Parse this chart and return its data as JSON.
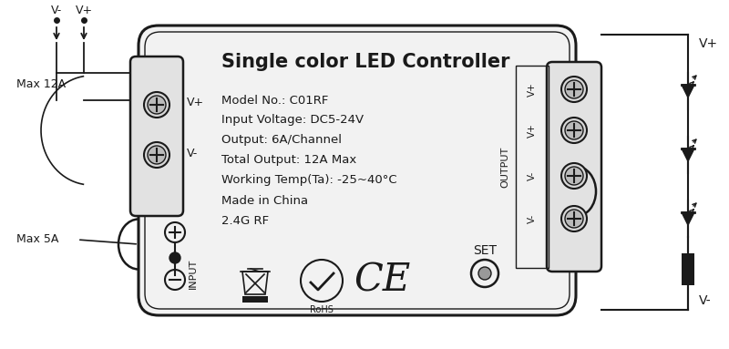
{
  "title": "Single color LED Controller",
  "model": "Model No.: C01RF",
  "input_voltage": "Input Voltage: DC5-24V",
  "output": "Output: 6A/Channel",
  "total_output": "Total Output: 12A Max",
  "working_temp": "Working Temp(Ta): -25~40°C",
  "made_in": "Made in China",
  "rf": "2.4G RF",
  "set_label": "SET",
  "rohs": "RoHS",
  "input_label": "INPUT",
  "output_label": "OUTPUT",
  "vplus": "V+",
  "vminus": "V-",
  "max12a": "Max 12A",
  "max5a": "Max 5A",
  "bg_color": "#ffffff",
  "line_color": "#1a1a1a",
  "text_color": "#1a1a1a",
  "out_labels": [
    "V+",
    "V+",
    "V-",
    "V-"
  ]
}
